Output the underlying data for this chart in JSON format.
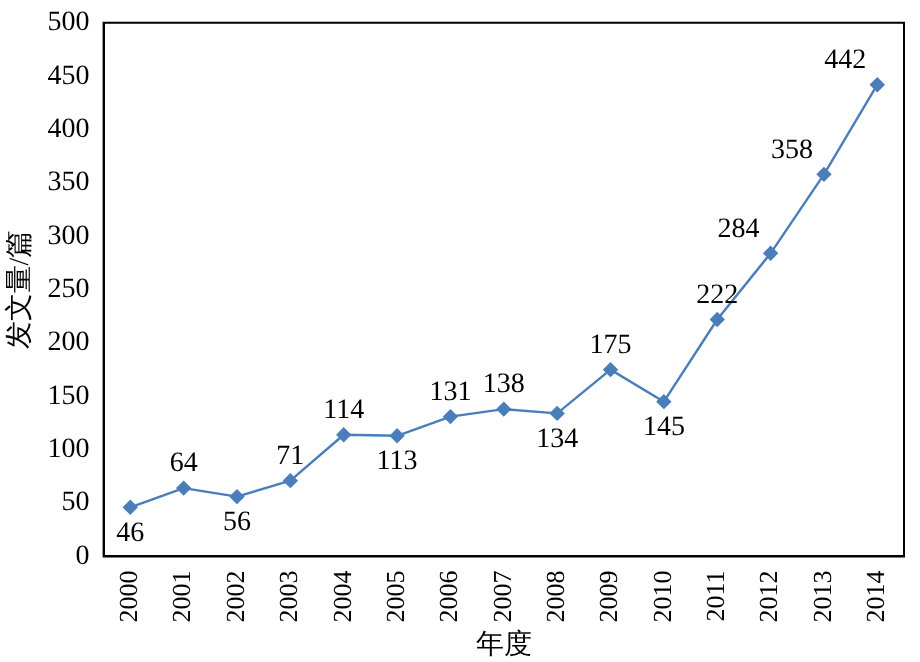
{
  "chart_data": {
    "type": "line",
    "xlabel": "年度",
    "ylabel": "发文量/篇",
    "categories": [
      "2000",
      "2001",
      "2002",
      "2003",
      "2004",
      "2005",
      "2006",
      "2007",
      "2008",
      "2009",
      "2010",
      "2011",
      "2012",
      "2013",
      "2014"
    ],
    "values": [
      46,
      64,
      56,
      71,
      114,
      113,
      131,
      138,
      134,
      175,
      145,
      222,
      284,
      358,
      442
    ],
    "color": "#4a7ebb",
    "ylim": [
      0,
      500
    ],
    "yticks": [
      0,
      50,
      100,
      150,
      200,
      250,
      300,
      350,
      400,
      450,
      500
    ],
    "grid": false,
    "legend": false,
    "marker": "diamond",
    "line_style": "solid",
    "data_labels": true
  }
}
